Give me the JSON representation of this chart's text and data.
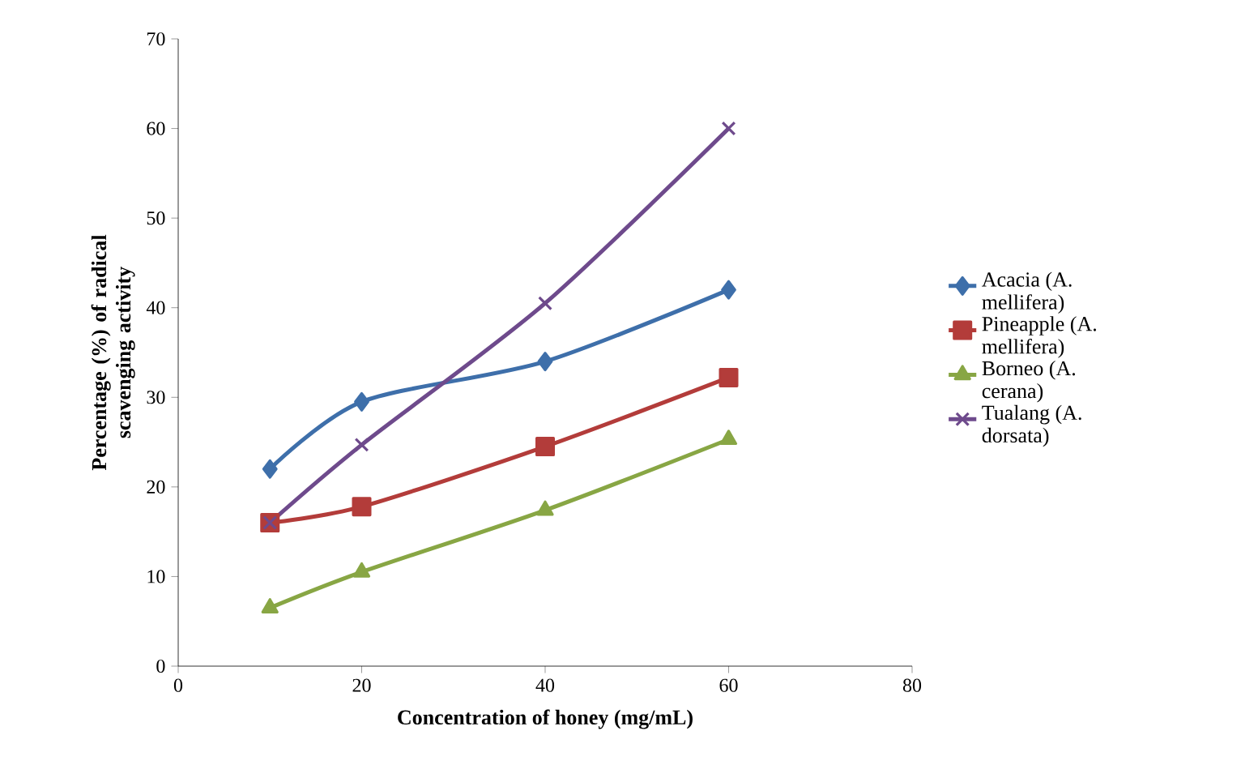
{
  "chart_data": {
    "type": "line",
    "xlabel": "Concentration of  honey (mg/mL)",
    "ylabel": "Percentage (%) of radical scavenging activity",
    "x": [
      10,
      20,
      40,
      60
    ],
    "series": [
      {
        "name": "Acacia (A. mellifera)",
        "color": "#3e6faa",
        "marker": "diamond",
        "values": [
          22,
          29.5,
          34,
          42
        ]
      },
      {
        "name": "Pineapple (A. mellifera)",
        "color": "#b33c3a",
        "marker": "square",
        "values": [
          16,
          17.8,
          24.5,
          32.2
        ]
      },
      {
        "name": "Borneo (A. cerana)",
        "color": "#88a644",
        "marker": "triangle",
        "values": [
          6.5,
          10.5,
          17.4,
          25.3
        ]
      },
      {
        "name": "Tualang (A. dorsata)",
        "color": "#6e4a8c",
        "marker": "cross",
        "values": [
          16,
          24.7,
          40.5,
          60
        ]
      }
    ],
    "xlim": [
      0,
      80
    ],
    "xticks": [
      0,
      20,
      40,
      60,
      80
    ],
    "ylim": [
      0,
      70
    ],
    "yticks": [
      0,
      10,
      20,
      30,
      40,
      50,
      60,
      70
    ],
    "legend": "right",
    "grid": false,
    "line_style": "solid"
  }
}
